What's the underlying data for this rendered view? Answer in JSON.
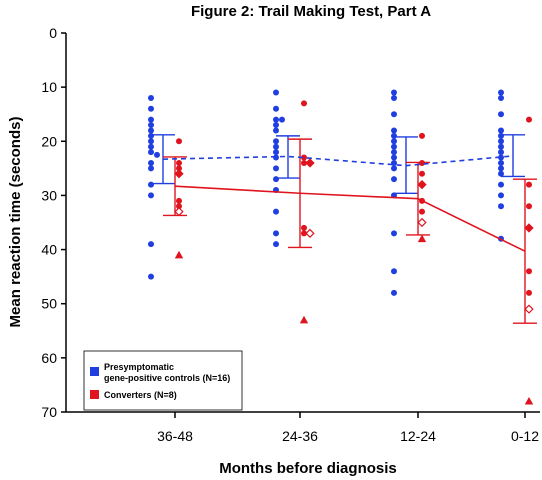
{
  "chart_data": {
    "type": "scatter",
    "title": "Figure 2: Trail Making Test, Part A",
    "xlabel": "Months before diagnosis",
    "ylabel": "Mean reaction time (seconds)",
    "categories": [
      "36-48",
      "24-36",
      "12-24",
      "0-12"
    ],
    "ylim": [
      0,
      70
    ],
    "y_inverted": true,
    "yticks": [
      0,
      10,
      20,
      30,
      40,
      50,
      60,
      70
    ],
    "legend": {
      "placement": "bottom-left",
      "entries": [
        {
          "label_line1": "Presymptomatic",
          "label_line2": "gene-positive controls (N=16)",
          "color": "#1f3fe0"
        },
        {
          "label_line1": "Converters (N=8)",
          "label_line2": "",
          "color": "#e0141e"
        }
      ]
    },
    "series": [
      {
        "name": "Presymptomatic gene-positive controls (N=16)",
        "color": "#1f3fe0",
        "line_style": "dashed",
        "mean": [
          23.3,
          22.8,
          24.5,
          22.7
        ],
        "error_low": [
          18.8,
          19.0,
          19.2,
          18.8
        ],
        "error_high": [
          27.8,
          26.8,
          29.6,
          26.5
        ],
        "points": [
          [
            12,
            14,
            16,
            17,
            18,
            19,
            20,
            21,
            22,
            22.5,
            24,
            25,
            28,
            30,
            39,
            45
          ],
          [
            11,
            14,
            16,
            16,
            17,
            18,
            20,
            21,
            22,
            23,
            25,
            27,
            29,
            33,
            37,
            39
          ],
          [
            11,
            12,
            15,
            18,
            19,
            20,
            21,
            22,
            23,
            24,
            25,
            27,
            30,
            37,
            44,
            48
          ],
          [
            11,
            12,
            15,
            18,
            19,
            20,
            21,
            22,
            23,
            24,
            25,
            26,
            28,
            30,
            32,
            38
          ]
        ]
      },
      {
        "name": "Converters (N=8)",
        "color": "#e0141e",
        "line_style": "solid",
        "mean": [
          28.3,
          29.6,
          30.6,
          40.3
        ],
        "error_low": [
          22.9,
          19.6,
          23.9,
          27.0
        ],
        "error_high": [
          33.7,
          39.6,
          37.3,
          53.6
        ],
        "points": [
          [
            20,
            24,
            25,
            26,
            31,
            32,
            33,
            41
          ],
          [
            13,
            23,
            24,
            24,
            36,
            37,
            37,
            53
          ],
          [
            19,
            24,
            26,
            28,
            31,
            33,
            35,
            38
          ],
          [
            16,
            28,
            32,
            36,
            44,
            48,
            51,
            68
          ]
        ],
        "marker_shapes": [
          "circle",
          "circle",
          "circle",
          "diamond",
          "circle",
          "circle",
          "hollow-diamond",
          "triangle"
        ]
      }
    ]
  }
}
